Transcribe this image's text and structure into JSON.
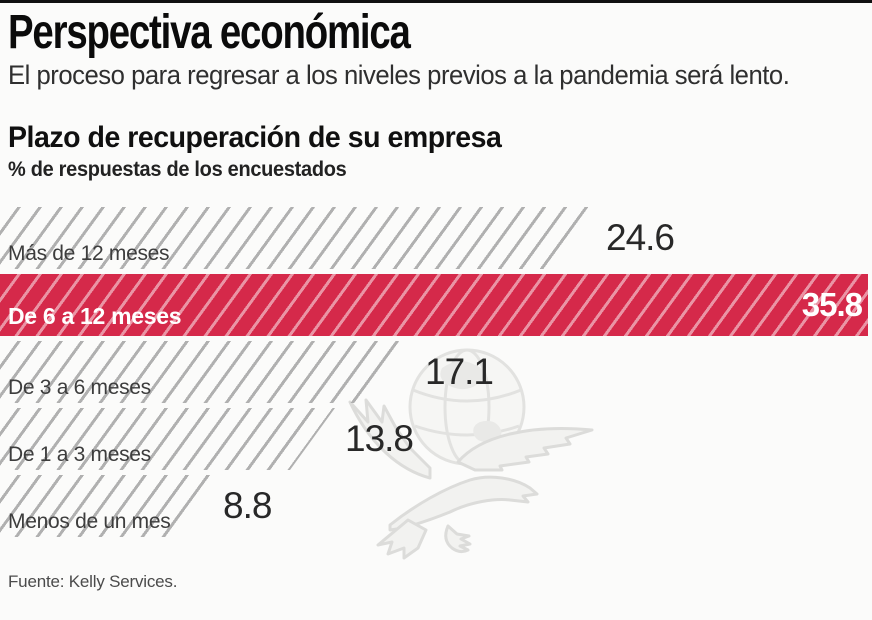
{
  "page": {
    "background": "#fbfbfa",
    "top_rule_color": "#111111"
  },
  "header": {
    "title": "Perspectiva económica",
    "subtitle": "El proceso para regresar a los niveles previos a la pandemia será lento."
  },
  "chart": {
    "heading": "Plazo de recuperación de su empresa",
    "unit_label": "% de respuestas de los encuestados",
    "source": "Fuente: Kelly Services."
  },
  "watermark": {
    "icon": "eagle-globe-watermark",
    "color": "#e4e4e2"
  },
  "chart_data": {
    "type": "bar",
    "orientation": "horizontal",
    "title": "Plazo de recuperación de su empresa",
    "xlabel": "% de respuestas de los encuestados",
    "categories": [
      "Más de 12 meses",
      "De 6 a 12 meses",
      "De 3 a 6 meses",
      "De 1 a 3 meses",
      "Menos de un mes"
    ],
    "values": [
      24.6,
      35.8,
      17.1,
      13.8,
      8.8
    ],
    "value_labels": [
      "24.6",
      "35.8",
      "17.1",
      "13.8",
      "8.8"
    ],
    "highlight_index": 1,
    "xlim": [
      0,
      35.8
    ],
    "grid": false,
    "legend": false,
    "bar_style": "diagonal-hatch",
    "colors": {
      "hatch_line": "#b0b0b0",
      "highlight_bar": "#d5294a",
      "highlight_hatch": "rgba(255,255,255,0.5)",
      "value_text": "#282828",
      "highlight_value_text": "#ffffff",
      "label_text": "#3d3d3d"
    }
  }
}
